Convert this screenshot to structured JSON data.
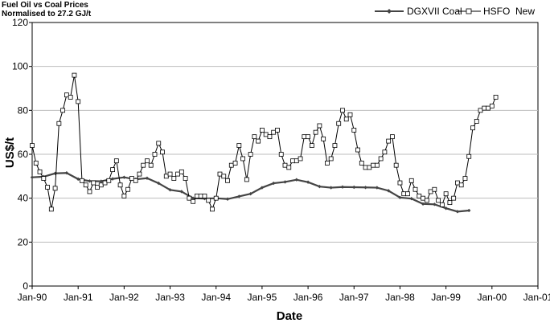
{
  "chart_data": {
    "type": "line",
    "title": "Fuel Oil vs Coal Prices",
    "subtitle": "Normalised to 27.2 GJ/t",
    "xlabel": "Date",
    "ylabel": "US$/t",
    "ylim": [
      0,
      120
    ],
    "xlim": [
      "Jan-90",
      "Jan-01"
    ],
    "y_ticks": [
      "0",
      "20",
      "40",
      "60",
      "80",
      "100",
      "120"
    ],
    "x_ticks": [
      "Jan-90",
      "Jan-91",
      "Jan-92",
      "Jan-93",
      "Jan-94",
      "Jan-95",
      "Jan-96",
      "Jan-97",
      "Jan-98",
      "Jan-99",
      "Jan-00",
      "Jan-01"
    ],
    "grid": "horizontal",
    "legend_position": "top-right",
    "series": [
      {
        "name": "DGXVII Coal",
        "color": "#444444",
        "marker": "diamond",
        "points": [
          [
            "1990-01",
            49.5
          ],
          [
            "1990-04",
            49.8
          ],
          [
            "1990-07",
            51.3
          ],
          [
            "1990-10",
            51.5
          ],
          [
            "1991-01",
            48.7
          ],
          [
            "1991-04",
            47.8
          ],
          [
            "1991-07",
            47.7
          ],
          [
            "1991-10",
            48.8
          ],
          [
            "1992-01",
            49.5
          ],
          [
            "1992-04",
            48.6
          ],
          [
            "1992-07",
            49.1
          ],
          [
            "1992-10",
            46.8
          ],
          [
            "1993-01",
            43.8
          ],
          [
            "1993-04",
            43.0
          ],
          [
            "1993-07",
            40.0
          ],
          [
            "1993-10",
            39.8
          ],
          [
            "1994-01",
            40.0
          ],
          [
            "1994-04",
            39.6
          ],
          [
            "1994-07",
            40.8
          ],
          [
            "1994-10",
            42.0
          ],
          [
            "1995-01",
            44.8
          ],
          [
            "1995-04",
            46.8
          ],
          [
            "1995-07",
            47.4
          ],
          [
            "1995-10",
            48.4
          ],
          [
            "1996-01",
            47.3
          ],
          [
            "1996-04",
            45.3
          ],
          [
            "1996-07",
            44.8
          ],
          [
            "1996-10",
            45.1
          ],
          [
            "1997-01",
            45.0
          ],
          [
            "1997-04",
            44.9
          ],
          [
            "1997-07",
            44.8
          ],
          [
            "1997-10",
            43.4
          ],
          [
            "1998-01",
            40.3
          ],
          [
            "1998-04",
            39.8
          ],
          [
            "1998-07",
            37.4
          ],
          [
            "1998-10",
            37.2
          ],
          [
            "1999-01",
            35.4
          ],
          [
            "1999-04",
            33.9
          ],
          [
            "1999-07",
            34.4
          ]
        ]
      },
      {
        "name": "HSFO  New",
        "color": "#000000",
        "marker": "square",
        "points": [
          [
            "1990-01",
            64.0
          ],
          [
            "1990-02",
            56.0
          ],
          [
            "1990-03",
            52.0
          ],
          [
            "1990-04",
            49.0
          ],
          [
            "1990-05",
            45.0
          ],
          [
            "1990-06",
            35.0
          ],
          [
            "1990-07",
            44.5
          ],
          [
            "1990-08",
            74.0
          ],
          [
            "1990-09",
            80.0
          ],
          [
            "1990-10",
            87.0
          ],
          [
            "1990-11",
            86.0
          ],
          [
            "1990-12",
            96.0
          ],
          [
            "1991-01",
            84.0
          ],
          [
            "1991-02",
            48.0
          ],
          [
            "1991-03",
            46.0
          ],
          [
            "1991-04",
            43.0
          ],
          [
            "1991-05",
            47.0
          ],
          [
            "1991-06",
            45.0
          ],
          [
            "1991-07",
            46.0
          ],
          [
            "1991-08",
            47.0
          ],
          [
            "1991-09",
            48.0
          ],
          [
            "1991-10",
            53.0
          ],
          [
            "1991-11",
            57.0
          ],
          [
            "1991-12",
            46.0
          ],
          [
            "1992-01",
            41.0
          ],
          [
            "1992-02",
            44.0
          ],
          [
            "1992-03",
            49.0
          ],
          [
            "1992-04",
            48.0
          ],
          [
            "1992-05",
            51.0
          ],
          [
            "1992-06",
            55.0
          ],
          [
            "1992-07",
            57.0
          ],
          [
            "1992-08",
            55.0
          ],
          [
            "1992-09",
            60.0
          ],
          [
            "1992-10",
            65.0
          ],
          [
            "1992-11",
            61.0
          ],
          [
            "1992-12",
            50.0
          ],
          [
            "1993-01",
            51.0
          ],
          [
            "1993-02",
            49.0
          ],
          [
            "1993-03",
            51.0
          ],
          [
            "1993-04",
            52.0
          ],
          [
            "1993-05",
            49.0
          ],
          [
            "1993-06",
            40.0
          ],
          [
            "1993-07",
            38.5
          ],
          [
            "1993-08",
            41.0
          ],
          [
            "1993-09",
            41.0
          ],
          [
            "1993-10",
            41.0
          ],
          [
            "1993-11",
            39.0
          ],
          [
            "1993-12",
            35.0
          ],
          [
            "1994-01",
            40.0
          ],
          [
            "1994-02",
            51.0
          ],
          [
            "1994-03",
            50.0
          ],
          [
            "1994-04",
            48.0
          ],
          [
            "1994-05",
            55.0
          ],
          [
            "1994-06",
            56.0
          ],
          [
            "1994-07",
            64.0
          ],
          [
            "1994-08",
            58.0
          ],
          [
            "1994-09",
            48.5
          ],
          [
            "1994-10",
            60.0
          ],
          [
            "1994-11",
            68.0
          ],
          [
            "1994-12",
            66.0
          ],
          [
            "1995-01",
            71.0
          ],
          [
            "1995-02",
            69.0
          ],
          [
            "1995-03",
            68.0
          ],
          [
            "1995-04",
            70.0
          ],
          [
            "1995-05",
            71.0
          ],
          [
            "1995-06",
            60.0
          ],
          [
            "1995-07",
            55.0
          ],
          [
            "1995-08",
            54.0
          ],
          [
            "1995-09",
            57.0
          ],
          [
            "1995-10",
            57.0
          ],
          [
            "1995-11",
            58.0
          ],
          [
            "1995-12",
            68.0
          ],
          [
            "1996-01",
            68.0
          ],
          [
            "1996-02",
            64.0
          ],
          [
            "1996-03",
            70.0
          ],
          [
            "1996-04",
            73.0
          ],
          [
            "1996-05",
            67.0
          ],
          [
            "1996-06",
            56.0
          ],
          [
            "1996-07",
            58.0
          ],
          [
            "1996-08",
            64.0
          ],
          [
            "1996-09",
            74.0
          ],
          [
            "1996-10",
            80.0
          ],
          [
            "1996-11",
            76.0
          ],
          [
            "1996-12",
            78.0
          ],
          [
            "1997-01",
            71.0
          ],
          [
            "1997-02",
            62.0
          ],
          [
            "1997-03",
            56.0
          ],
          [
            "1997-04",
            54.0
          ],
          [
            "1997-05",
            54.0
          ],
          [
            "1997-06",
            55.0
          ],
          [
            "1997-07",
            55.0
          ],
          [
            "1997-08",
            58.0
          ],
          [
            "1997-09",
            61.0
          ],
          [
            "1997-10",
            66.0
          ],
          [
            "1997-11",
            68.0
          ],
          [
            "1997-12",
            55.0
          ],
          [
            "1998-01",
            47.0
          ],
          [
            "1998-02",
            42.0
          ],
          [
            "1998-03",
            42.0
          ],
          [
            "1998-04",
            48.0
          ],
          [
            "1998-05",
            44.0
          ],
          [
            "1998-06",
            41.0
          ],
          [
            "1998-07",
            40.0
          ],
          [
            "1998-08",
            39.0
          ],
          [
            "1998-09",
            43.0
          ],
          [
            "1998-10",
            44.0
          ],
          [
            "1998-11",
            39.0
          ],
          [
            "1998-12",
            37.0
          ],
          [
            "1999-01",
            42.0
          ],
          [
            "1999-02",
            38.0
          ],
          [
            "1999-03",
            40.0
          ],
          [
            "1999-04",
            47.0
          ],
          [
            "1999-05",
            46.0
          ],
          [
            "1999-06",
            49.0
          ],
          [
            "1999-07",
            59.0
          ],
          [
            "1999-08",
            72.0
          ],
          [
            "1999-09",
            75.0
          ],
          [
            "1999-10",
            80.0
          ],
          [
            "1999-11",
            81.0
          ],
          [
            "1999-12",
            81.0
          ],
          [
            "2000-01",
            82.0
          ],
          [
            "2000-02",
            86.0
          ]
        ]
      }
    ]
  }
}
